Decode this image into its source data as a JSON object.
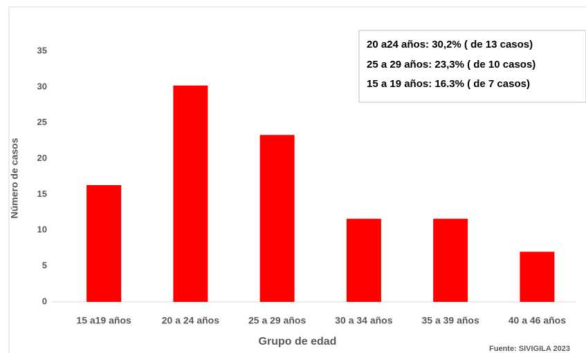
{
  "chart_data": {
    "type": "bar",
    "categories": [
      "15 a19 años",
      "20 a 24 años",
      "25 a 29 años",
      "30 a 34 años",
      "35 a 39 años",
      "40 a 46 años"
    ],
    "values": [
      16.3,
      30.2,
      23.3,
      11.6,
      11.6,
      7.0
    ],
    "color": "#ff0000",
    "ylim": [
      0,
      35
    ],
    "yticks": [
      0,
      5,
      10,
      15,
      20,
      25,
      30,
      35
    ],
    "xlabel": "Grupo de edad",
    "ylabel": "Número de casos",
    "annotations": [
      "20 a24 años: 30,2% ( de 13 casos)",
      "25 a 29 años: 23,3% ( de 10 casos)",
      "15 a 19 años: 16.3% ( de 7 casos)"
    ],
    "source": "Fuente: SIVIGILA 2023"
  }
}
